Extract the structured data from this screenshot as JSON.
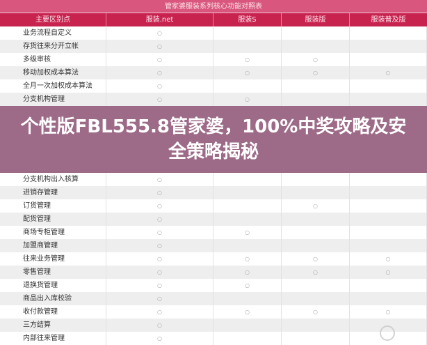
{
  "table": {
    "title": "管家婆服装系列核心功能对照表",
    "columns": [
      "主要区别点",
      "服装.net",
      "服装S",
      "服装版",
      "服装普及版"
    ],
    "mark": "○",
    "rows": [
      {
        "label": "业务流程自定义",
        "marks": [
          1,
          0,
          0,
          0
        ]
      },
      {
        "label": "存货往来分开立帐",
        "marks": [
          1,
          0,
          0,
          0
        ]
      },
      {
        "label": "多级审核",
        "marks": [
          1,
          1,
          1,
          0
        ]
      },
      {
        "label": "移动加权成本算法",
        "marks": [
          1,
          1,
          1,
          1
        ]
      },
      {
        "label": "全月一次加权成本算法",
        "marks": [
          1,
          0,
          0,
          0
        ]
      },
      {
        "label": "分支机构管理",
        "marks": [
          1,
          1,
          0,
          0
        ]
      },
      {
        "label": "分支机构出入核算",
        "marks": [
          1,
          0,
          0,
          0
        ]
      },
      {
        "label": "进销存管理",
        "marks": [
          1,
          0,
          0,
          0
        ]
      },
      {
        "label": "订货管理",
        "marks": [
          1,
          0,
          1,
          0
        ]
      },
      {
        "label": "配货管理",
        "marks": [
          1,
          0,
          0,
          0
        ]
      },
      {
        "label": "商场专柜管理",
        "marks": [
          1,
          1,
          0,
          0
        ]
      },
      {
        "label": "加盟商管理",
        "marks": [
          1,
          0,
          0,
          0
        ]
      },
      {
        "label": "往来业务管理",
        "marks": [
          1,
          1,
          1,
          1
        ]
      },
      {
        "label": "零售管理",
        "marks": [
          1,
          1,
          1,
          1
        ]
      },
      {
        "label": "退换货管理",
        "marks": [
          1,
          1,
          0,
          0
        ]
      },
      {
        "label": "商品出入库校验",
        "marks": [
          1,
          0,
          0,
          0
        ]
      },
      {
        "label": "收付款管理",
        "marks": [
          1,
          1,
          1,
          1
        ]
      },
      {
        "label": "三方结算",
        "marks": [
          1,
          0,
          0,
          0
        ]
      },
      {
        "label": "内部往来管理",
        "marks": [
          1,
          0,
          0,
          0
        ]
      }
    ]
  },
  "banner": {
    "text": "个性版FBL555.8管家婆，100%中奖攻略及安全策略揭秘"
  },
  "colors": {
    "title_bg": "#d9577e",
    "header_bg": "#c8234f",
    "banner": "#8c5073"
  }
}
